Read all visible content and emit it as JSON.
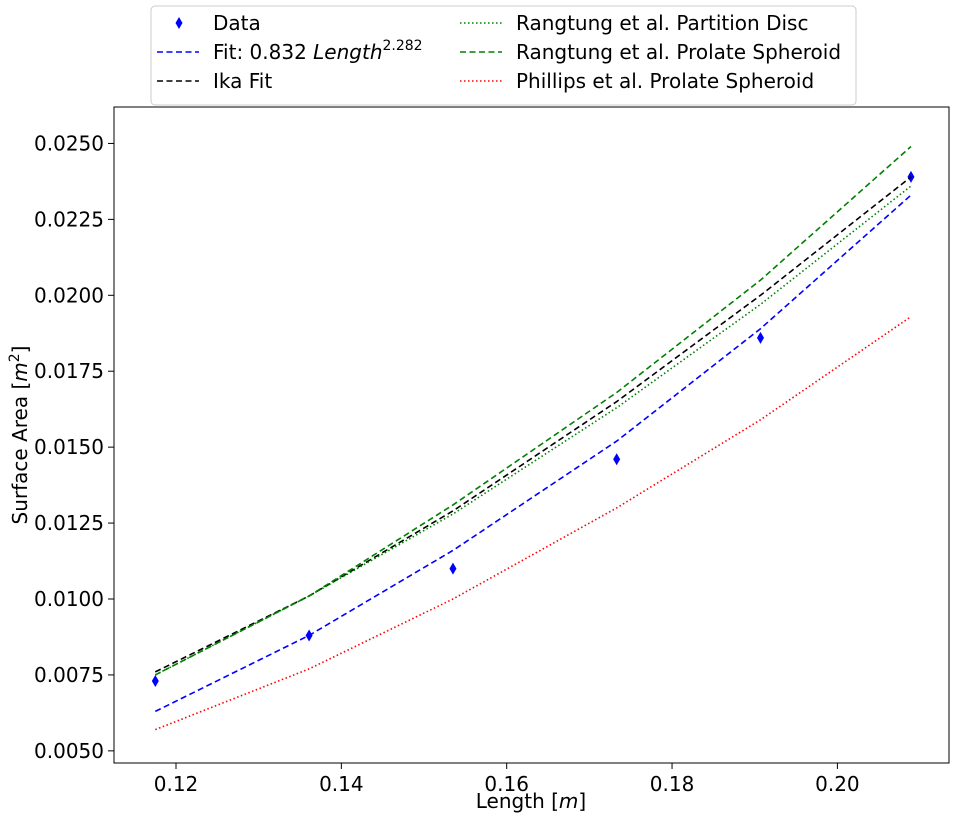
{
  "chart_data": {
    "type": "line",
    "xlabel": "Length [m]",
    "ylabel": "Surface Area [m²]",
    "xlim": [
      0.1125,
      0.2135
    ],
    "ylim": [
      0.0046,
      0.0262
    ],
    "x_ticks": [
      "0.12",
      "0.14",
      "0.16",
      "0.18",
      "0.20"
    ],
    "x_tick_values": [
      0.12,
      0.14,
      0.16,
      0.18,
      0.2
    ],
    "y_ticks": [
      "0.0050",
      "0.0075",
      "0.0100",
      "0.0125",
      "0.0150",
      "0.0175",
      "0.0200",
      "0.0225",
      "0.0250"
    ],
    "y_tick_values": [
      0.005,
      0.0075,
      0.01,
      0.0125,
      0.015,
      0.0175,
      0.02,
      0.0225,
      0.025
    ],
    "grid": false,
    "legend_position": "top-center, above plot, two columns",
    "x": [
      0.1175,
      0.1361,
      0.1535,
      0.1733,
      0.1907,
      0.2089
    ],
    "series": [
      {
        "name": "Data",
        "kind": "scatter",
        "marker": "diamond",
        "color": "#0000ff",
        "values": [
          0.0073,
          0.0088,
          0.011,
          0.0146,
          0.0186,
          0.0239
        ]
      },
      {
        "name": "Fit: 0.832 Length^2.282",
        "legend_prefix": "Fit: 0.832 ",
        "legend_italic": "Length",
        "legend_sup": "2.282",
        "kind": "line",
        "style": "dashed",
        "color": "#0000ff",
        "values": [
          0.0063,
          0.0088,
          0.0116,
          0.0152,
          0.0189,
          0.0233
        ]
      },
      {
        "name": "Ika Fit",
        "kind": "line",
        "style": "dashed",
        "color": "#000000",
        "values": [
          0.0076,
          0.0101,
          0.0129,
          0.0165,
          0.02,
          0.0239
        ]
      },
      {
        "name": "Rangtung et al. Partition Disc",
        "kind": "line",
        "style": "dotted",
        "color": "#008000",
        "values": [
          0.0075,
          0.0101,
          0.0128,
          0.0163,
          0.0197,
          0.0236
        ]
      },
      {
        "name": "Rangtung et al. Prolate Spheroid",
        "kind": "line",
        "style": "dashed",
        "color": "#008000",
        "values": [
          0.0075,
          0.0101,
          0.0131,
          0.0168,
          0.0205,
          0.0249
        ]
      },
      {
        "name": "Phillips et al. Prolate Spheroid",
        "kind": "line",
        "style": "dotted",
        "color": "#ff0000",
        "values": [
          0.0057,
          0.0077,
          0.01,
          0.013,
          0.0159,
          0.0193
        ]
      }
    ]
  }
}
